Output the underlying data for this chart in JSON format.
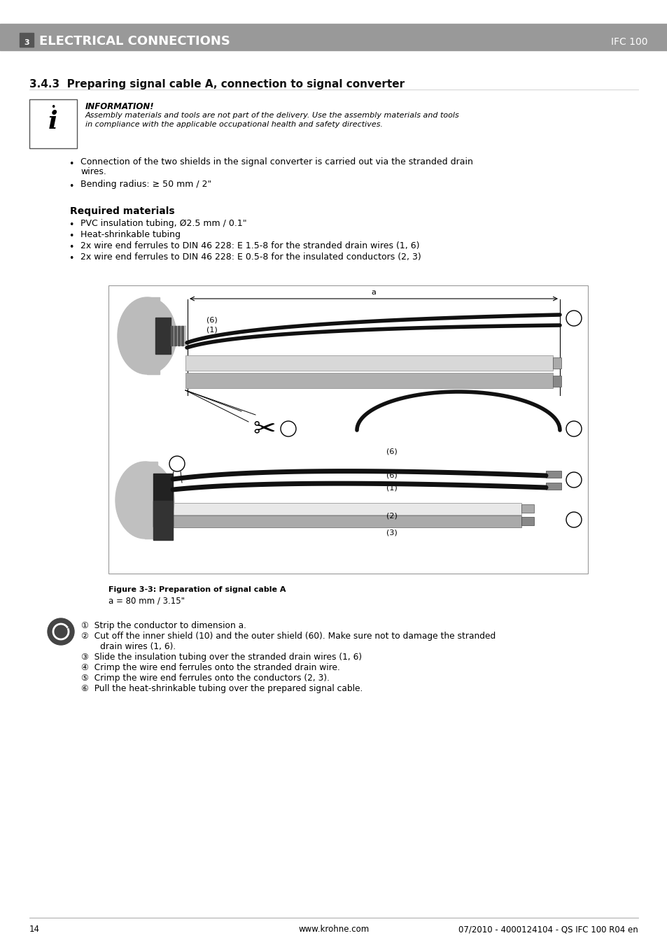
{
  "page_number": "14",
  "website": "www.krohne.com",
  "doc_ref": "07/2010 - 4000124104 - QS IFC 100 R04 en",
  "header_section_num": "3",
  "header_title": "ELECTRICAL CONNECTIONS",
  "header_right": "IFC 100",
  "section_title": "3.4.3  Preparing signal cable A, connection to signal converter",
  "info_title": "INFORMATION!",
  "info_text1": "Assembly materials and tools are not part of the delivery. Use the assembly materials and tools",
  "info_text2": "in compliance with the applicable occupational health and safety directives.",
  "bullet1a": "Connection of the two shields in the signal converter is carried out via the stranded drain",
  "bullet1b": "wires.",
  "bullet2": "Bending radius: ≥ 50 mm / 2\"",
  "req_mat_title": "Required materials",
  "req_mat1": "PVC insulation tubing, Ø2.5 mm / 0.1\"",
  "req_mat2": "Heat-shrinkable tubing",
  "req_mat3": "2x wire end ferrules to DIN 46 228: E 1.5-8 for the stranded drain wires (1, 6)",
  "req_mat4": "2x wire end ferrules to DIN 46 228: E 0.5-8 for the insulated conductors (2, 3)",
  "fig_caption": "Figure 3-3: Preparation of signal cable A",
  "fig_note": "a = 80 mm / 3.15\"",
  "step1": "Strip the conductor to dimension a.",
  "step2a": "Cut off the inner shield (10) and the outer shield (60). Make sure not to damage the stranded",
  "step2b": "drain wires (1, 6).",
  "step3": "Slide the insulation tubing over the stranded drain wires (1, 6)",
  "step4": "Crimp the wire end ferrules onto the stranded drain wire.",
  "step5": "Crimp the wire end ferrules onto the conductors (2, 3).",
  "step6": "Pull the heat-shrinkable tubing over the prepared signal cable.",
  "bg_color": "#ffffff",
  "header_bg": "#999999",
  "header_num_bg": "#555555",
  "text_color": "#000000",
  "fig_border": "#888888"
}
